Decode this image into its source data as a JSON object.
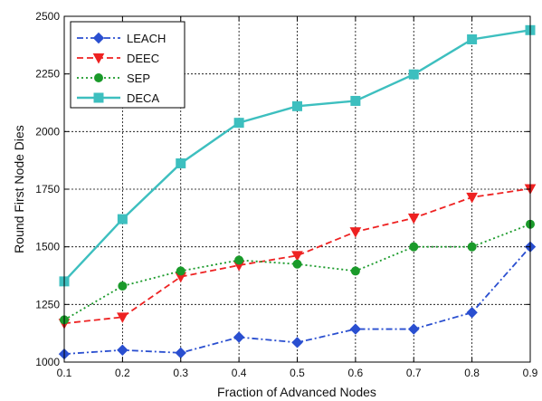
{
  "chart_data": {
    "type": "line",
    "title": "",
    "xlabel": "Fraction of Advanced Nodes",
    "ylabel": "Round First Node Dies",
    "x": [
      0.1,
      0.2,
      0.3,
      0.4,
      0.5,
      0.6,
      0.7,
      0.8,
      0.9
    ],
    "xlim": [
      0.1,
      0.9
    ],
    "ylim": [
      1000,
      2500
    ],
    "x_ticks": [
      "0.1",
      "0.2",
      "0.3",
      "0.4",
      "0.5",
      "0.6",
      "0.7",
      "0.8",
      "0.9"
    ],
    "y_ticks": [
      "1000",
      "1250",
      "1500",
      "1750",
      "2000",
      "2250",
      "2500"
    ],
    "grid": true,
    "legend_position": "top-left",
    "series": [
      {
        "name": "LEACH",
        "color": "#2a4fd0",
        "dash": "dash-dot",
        "marker": "diamond",
        "values": [
          1035,
          1052,
          1040,
          1108,
          1085,
          1143,
          1143,
          1215,
          1500
        ]
      },
      {
        "name": "DEEC",
        "color": "#ee2222",
        "dash": "dashed",
        "marker": "triangle-down",
        "values": [
          1168,
          1195,
          1370,
          1420,
          1462,
          1565,
          1625,
          1715,
          1752
        ]
      },
      {
        "name": "SEP",
        "color": "#1a9a2a",
        "dash": "dotted",
        "marker": "circle",
        "values": [
          1183,
          1330,
          1395,
          1442,
          1425,
          1395,
          1500,
          1500,
          1598
        ]
      },
      {
        "name": "DECA",
        "color": "#3dbfbf",
        "dash": "solid",
        "marker": "square",
        "values": [
          1350,
          1620,
          1862,
          2038,
          2110,
          2133,
          2248,
          2400,
          2440
        ]
      }
    ]
  }
}
